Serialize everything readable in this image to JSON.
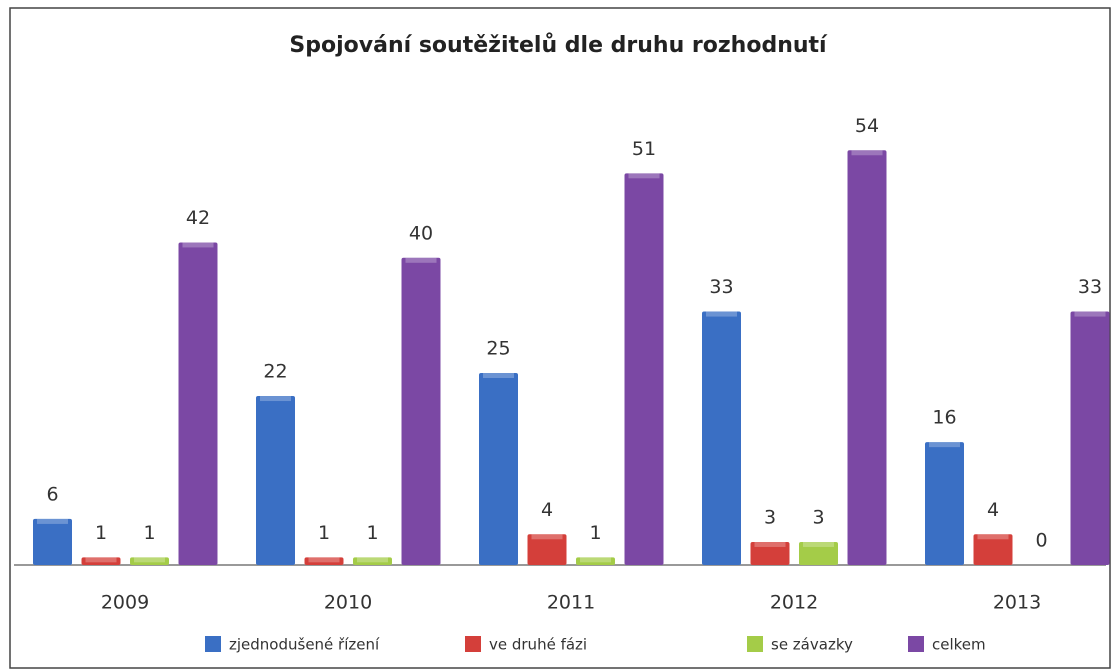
{
  "chart_data": {
    "type": "bar",
    "title": "Spojování soutěžitelů dle druhu rozhodnutí",
    "categories": [
      "2009",
      "2010",
      "2011",
      "2012",
      "2013"
    ],
    "series": [
      {
        "name": "zjednodušené řízení",
        "color": "#3a6fc4",
        "values": [
          6,
          22,
          25,
          33,
          16
        ]
      },
      {
        "name": "ve druhé fázi",
        "color": "#d43f3a",
        "values": [
          1,
          1,
          4,
          3,
          4
        ]
      },
      {
        "name": "se závazky",
        "color": "#a4cc48",
        "values": [
          1,
          1,
          1,
          3,
          0
        ]
      },
      {
        "name": "celkem",
        "color": "#7b48a4",
        "values": [
          42,
          40,
          51,
          54,
          33
        ]
      }
    ]
  }
}
